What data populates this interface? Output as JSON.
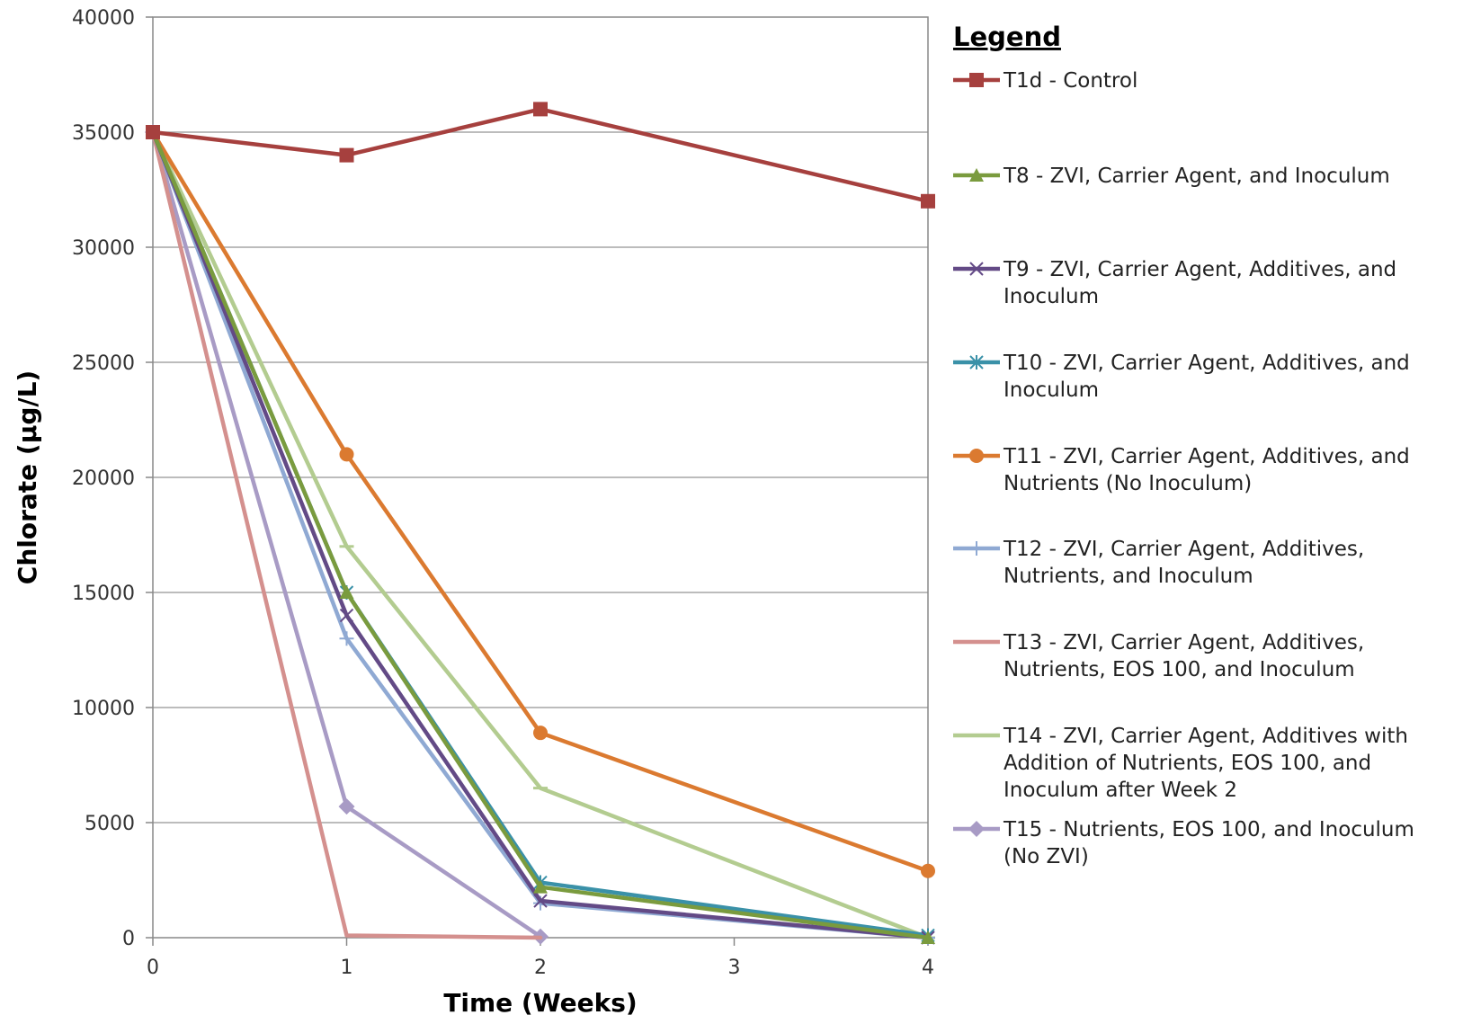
{
  "chart_data": {
    "type": "line",
    "xlabel": "Time (Weeks)",
    "ylabel": "Chlorate (µg/L)",
    "xlim": [
      0,
      4
    ],
    "ylim": [
      0,
      40000
    ],
    "x_ticks": [
      "0",
      "1",
      "2",
      "3",
      "4"
    ],
    "y_ticks": [
      "0",
      "5000",
      "10000",
      "15000",
      "20000",
      "25000",
      "30000",
      "35000",
      "40000"
    ],
    "grid": "horizontal",
    "legend_title": "Legend",
    "legend_position": "right",
    "series": [
      {
        "name": "T1d - Control",
        "color": "#a6403e",
        "marker": "square",
        "x": [
          0,
          1,
          2,
          4
        ],
        "y": [
          35000,
          34000,
          36000,
          32000
        ]
      },
      {
        "name": "T8 - ZVI, Carrier Agent, and Inoculum",
        "color": "#7a9b3e",
        "marker": "triangle",
        "x": [
          0,
          1,
          2,
          4
        ],
        "y": [
          35000,
          15000,
          2200,
          0
        ]
      },
      {
        "name": "T9 - ZVI, Carrier Agent, Additives, and Inoculum",
        "color": "#634a86",
        "marker": "x",
        "x": [
          0,
          1,
          2,
          4
        ],
        "y": [
          35000,
          14000,
          1600,
          0
        ]
      },
      {
        "name": "T10 - ZVI, Carrier Agent, Additives, and Inoculum",
        "color": "#3a91a8",
        "marker": "asterisk",
        "x": [
          0,
          1,
          2,
          4
        ],
        "y": [
          35000,
          15000,
          2400,
          100
        ]
      },
      {
        "name": "T11 - ZVI, Carrier Agent, Additives, and Nutrients (No Inoculum)",
        "color": "#db7a30",
        "marker": "circle",
        "x": [
          0,
          1,
          2,
          4
        ],
        "y": [
          35000,
          21000,
          8900,
          2900
        ]
      },
      {
        "name": "T12 - ZVI, Carrier Agent, Additives, Nutrients, and Inoculum",
        "color": "#8fa9d3",
        "marker": "plus",
        "x": [
          0,
          1,
          2,
          4
        ],
        "y": [
          35000,
          13000,
          1500,
          0
        ]
      },
      {
        "name": "T13 - ZVI, Carrier Agent, Additives, Nutrients, EOS 100, and Inoculum",
        "color": "#d4908e",
        "marker": "none",
        "x": [
          0,
          1,
          2
        ],
        "y": [
          35000,
          100,
          0
        ]
      },
      {
        "name": "T14 - ZVI, Carrier Agent, Additives with Addition of Nutrients, EOS 100, and Inoculum after Week 2",
        "color": "#b3cc90",
        "marker": "dash",
        "x": [
          0,
          1,
          2,
          4
        ],
        "y": [
          35000,
          17000,
          6500,
          0
        ]
      },
      {
        "name": "T15 - Nutrients, EOS 100, and Inoculum (No ZVI)",
        "color": "#a89bc5",
        "marker": "diamond",
        "x": [
          0,
          1,
          2
        ],
        "y": [
          35000,
          5700,
          50
        ]
      }
    ],
    "legend_lines": [
      [
        "T1d - Control"
      ],
      [
        "T8 - ZVI, Carrier Agent, and Inoculum"
      ],
      [
        "T9 - ZVI, Carrier Agent, Additives, and",
        "Inoculum"
      ],
      [
        "T10 - ZVI, Carrier Agent, Additives, and",
        "Inoculum"
      ],
      [
        "T11 - ZVI, Carrier Agent, Additives, and",
        "Nutrients (No Inoculum)"
      ],
      [
        "T12 - ZVI, Carrier Agent, Additives,",
        "Nutrients, and Inoculum"
      ],
      [
        "T13 - ZVI, Carrier Agent, Additives,",
        "Nutrients, EOS 100, and Inoculum"
      ],
      [
        "T14 - ZVI, Carrier Agent, Additives with",
        "Addition of Nutrients, EOS 100, and",
        "Inoculum after Week 2"
      ],
      [
        "T15 - Nutrients, EOS 100, and Inoculum",
        "(No ZVI)"
      ]
    ]
  }
}
